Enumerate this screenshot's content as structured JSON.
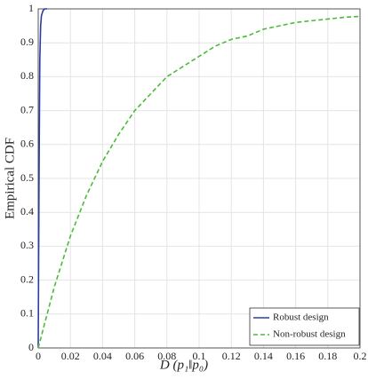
{
  "chart_data": {
    "type": "line",
    "xlabel": "D (p₁‖p₀)",
    "ylabel": "Empirical CDF",
    "series": [
      {
        "name": "Robust design",
        "color": "#2a3fa0",
        "dash": "solid",
        "x": [
          0,
          0.0005,
          0.001,
          0.0015,
          0.002,
          0.003,
          0.004,
          0.0055
        ],
        "values": [
          0,
          0.5,
          0.85,
          0.95,
          0.98,
          0.995,
          1,
          1
        ]
      },
      {
        "name": "Non-robust design",
        "color": "#4cbb3a",
        "dash": "dashed",
        "x": [
          0,
          0.01,
          0.02,
          0.03,
          0.04,
          0.05,
          0.06,
          0.07,
          0.08,
          0.09,
          0.1,
          0.11,
          0.12,
          0.13,
          0.14,
          0.15,
          0.16,
          0.17,
          0.18,
          0.19,
          0.2
        ],
        "values": [
          0,
          0.18,
          0.33,
          0.45,
          0.55,
          0.63,
          0.7,
          0.75,
          0.8,
          0.83,
          0.86,
          0.89,
          0.91,
          0.92,
          0.94,
          0.95,
          0.96,
          0.965,
          0.97,
          0.975,
          0.978
        ]
      }
    ],
    "xlim": [
      0,
      0.2
    ],
    "xticks": [
      0,
      0.02,
      0.04,
      0.06,
      0.08,
      0.1,
      0.12,
      0.14,
      0.16,
      0.18,
      0.2
    ],
    "ylim": [
      0,
      1
    ],
    "yticks": [
      0,
      0.1,
      0.2,
      0.3,
      0.4,
      0.5,
      0.6,
      0.7,
      0.8,
      0.9,
      1
    ],
    "grid": true,
    "legend": "lower right"
  }
}
